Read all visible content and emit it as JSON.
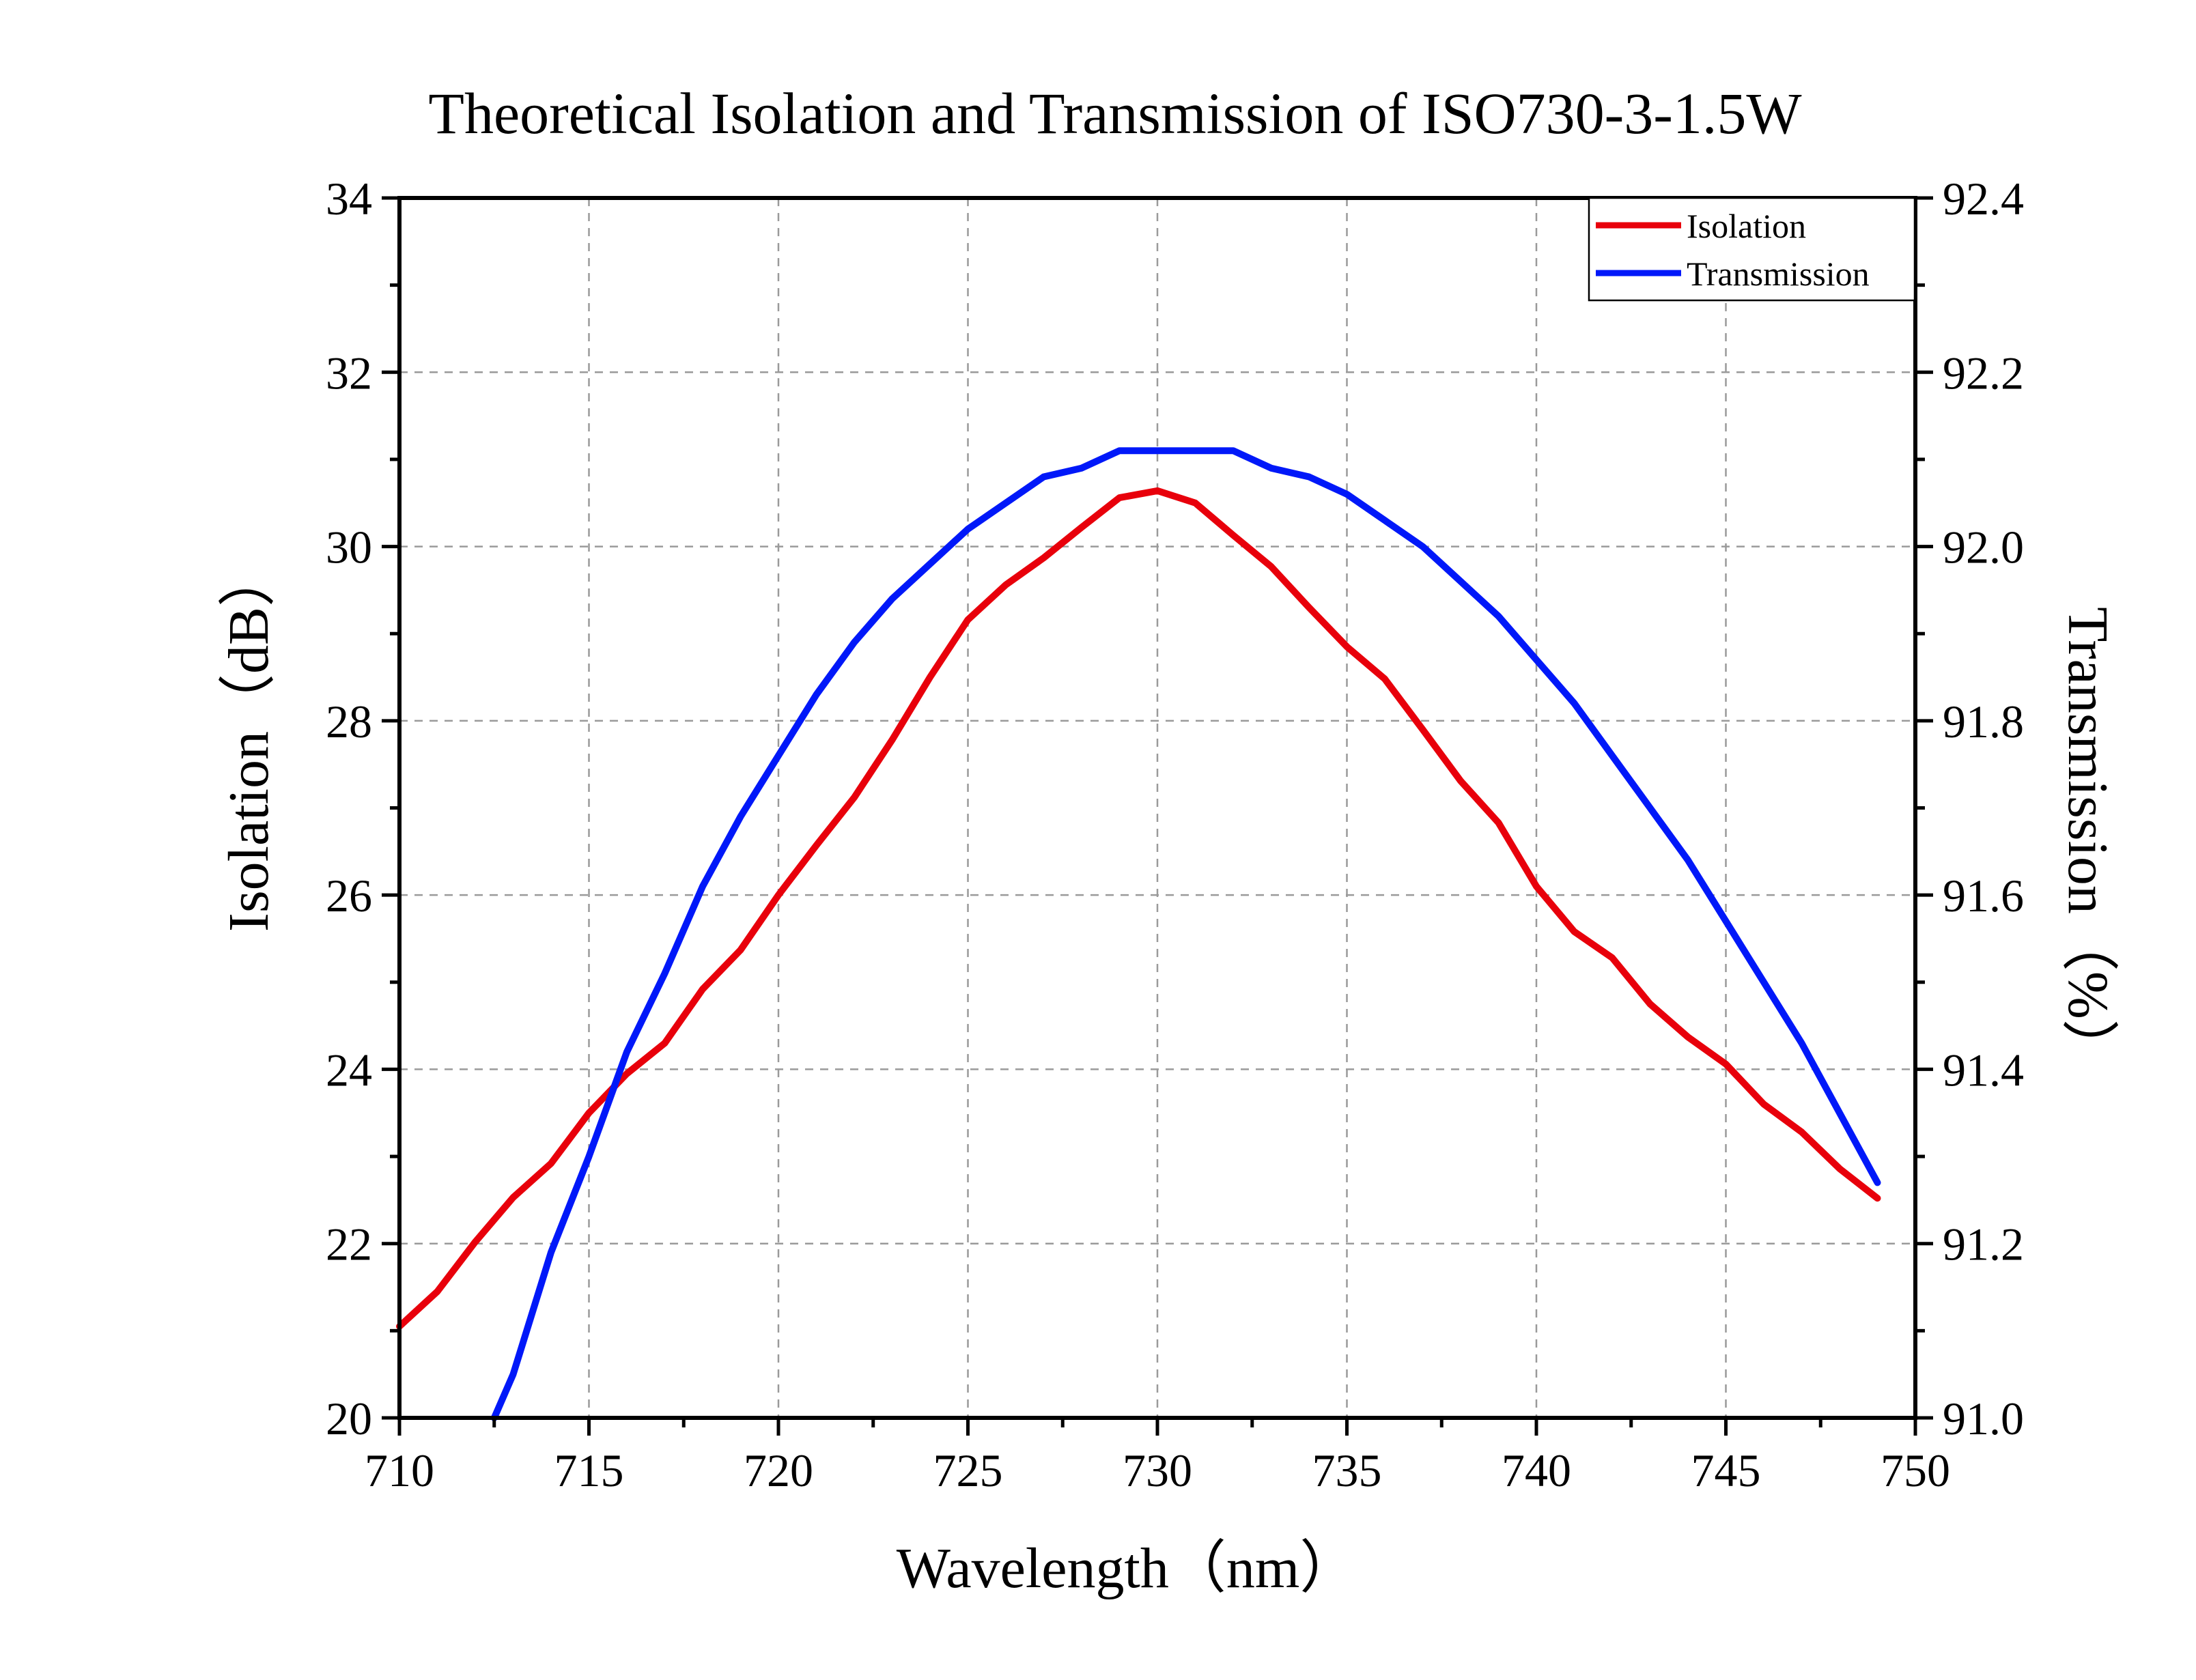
{
  "chart_data": {
    "type": "line",
    "title": "Theoretical Isolation and Transmission of ISO730-3-1.5W",
    "xlabel": "Wavelength（nm）",
    "ylabel_left": "Isolation（dB）",
    "ylabel_right": "Transmission（%）",
    "xlim": [
      710,
      750
    ],
    "ylim_left": [
      20,
      34
    ],
    "ylim_right": [
      91.0,
      92.4
    ],
    "x_ticks": [
      "710",
      "715",
      "720",
      "725",
      "730",
      "735",
      "740",
      "745",
      "750"
    ],
    "y_left_ticks": [
      "20",
      "22",
      "24",
      "26",
      "28",
      "30",
      "32",
      "34"
    ],
    "y_right_ticks": [
      "91.0",
      "91.2",
      "91.4",
      "91.6",
      "91.8",
      "92.0",
      "92.2",
      "92.4"
    ],
    "grid": true,
    "legend_position": "top-right",
    "series": [
      {
        "name": "Isolation",
        "axis": "left",
        "color": "#e8000b",
        "x": [
          710,
          711,
          712,
          713,
          714,
          715,
          716,
          717,
          718,
          719,
          720,
          721,
          722,
          723,
          724,
          725,
          726,
          727,
          728,
          729,
          730,
          731,
          732,
          733,
          734,
          735,
          736,
          737,
          738,
          739,
          740,
          741,
          742,
          743,
          744,
          745,
          746,
          747,
          748,
          749
        ],
        "y": [
          21.05,
          21.45,
          22.02,
          22.53,
          22.92,
          23.5,
          23.95,
          24.3,
          24.92,
          25.37,
          26.0,
          26.57,
          27.12,
          27.78,
          28.5,
          29.16,
          29.56,
          29.87,
          30.22,
          30.56,
          30.64,
          30.5,
          30.13,
          29.77,
          29.3,
          28.85,
          28.48,
          27.9,
          27.31,
          26.83,
          26.1,
          25.58,
          25.28,
          24.75,
          24.37,
          24.06,
          23.6,
          23.28,
          22.86,
          22.52
        ]
      },
      {
        "name": "Transmission",
        "axis": "right",
        "color": "#0018f9",
        "x": [
          712.5,
          713,
          714,
          715,
          716,
          717,
          718,
          719,
          720,
          721,
          722,
          723,
          724,
          725,
          726,
          727,
          728,
          729,
          730,
          731,
          732,
          733,
          734,
          735,
          736,
          737,
          738,
          739,
          740,
          741,
          742,
          743,
          744,
          745,
          746,
          747,
          748,
          749
        ],
        "y": [
          91.0,
          91.05,
          91.19,
          91.3,
          91.42,
          91.51,
          91.61,
          91.69,
          91.76,
          91.83,
          91.89,
          91.94,
          91.98,
          92.02,
          92.05,
          92.08,
          92.09,
          92.11,
          92.11,
          92.11,
          92.11,
          92.09,
          92.08,
          92.06,
          92.03,
          92.0,
          91.96,
          91.92,
          91.87,
          91.82,
          91.76,
          91.7,
          91.64,
          91.57,
          91.5,
          91.43,
          91.35,
          91.27
        ]
      }
    ]
  }
}
